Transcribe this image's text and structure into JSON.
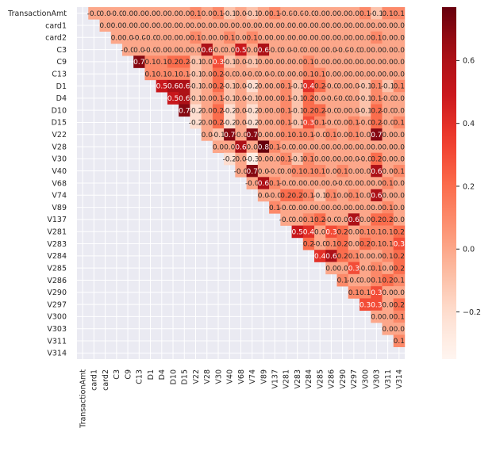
{
  "chart_data": {
    "type": "heatmap",
    "title": "",
    "xlabel": "",
    "ylabel": "",
    "variables": [
      "TransactionAmt",
      "card1",
      "card2",
      "C3",
      "C9",
      "C13",
      "D1",
      "D4",
      "D10",
      "D15",
      "V22",
      "V28",
      "V30",
      "V40",
      "V68",
      "V74",
      "V89",
      "V137",
      "V281",
      "V283",
      "V284",
      "V285",
      "V286",
      "V290",
      "V297",
      "V300",
      "V303",
      "V311",
      "V314"
    ],
    "mask": "lower-triangle-and-diagonal",
    "values": [
      [
        null,
        -0.0,
        0.0,
        -0.0,
        0.0,
        0.0,
        0.0,
        0.0,
        0.0,
        0.0,
        0.1,
        0.0,
        0.1,
        -0.1,
        0.0,
        -0.1,
        0.0,
        0.1,
        -0.0,
        -0.0,
        -0.0,
        0.0,
        0.0,
        0.0,
        0.0,
        0.1,
        -0.1,
        0.1,
        0.1
      ],
      [
        null,
        null,
        0.0,
        0.0,
        0.0,
        0.0,
        0.0,
        0.0,
        0.0,
        0.0,
        0.0,
        0.0,
        0.0,
        0.0,
        0.0,
        0.0,
        0.0,
        0.0,
        0.0,
        0.0,
        0.0,
        0.0,
        0.0,
        0.0,
        0.0,
        0.0,
        0.0,
        0.0,
        0.0
      ],
      [
        null,
        null,
        null,
        0.0,
        0.0,
        -0.0,
        -0.0,
        0.0,
        0.0,
        0.0,
        0.1,
        0.0,
        0.0,
        0.1,
        0.0,
        0.1,
        0.0,
        0.0,
        0.0,
        0.0,
        0.0,
        0.0,
        0.0,
        0.0,
        0.0,
        0.0,
        0.1,
        0.0,
        0.0
      ],
      [
        null,
        null,
        null,
        null,
        -0.0,
        0.0,
        -0.0,
        0.0,
        0.0,
        0.0,
        0.0,
        0.6,
        -0.0,
        0.0,
        0.5,
        0.0,
        0.6,
        -0.0,
        0.0,
        -0.0,
        0.0,
        0.0,
        0.0,
        -0.0,
        -0.0,
        0.0,
        0.0,
        0.0,
        0.0
      ],
      [
        null,
        null,
        null,
        null,
        null,
        0.7,
        0.1,
        0.1,
        0.2,
        0.2,
        -0.1,
        0.0,
        0.3,
        -0.1,
        0.0,
        -0.1,
        0.0,
        0.0,
        0.0,
        0.0,
        0.1,
        0.0,
        0.0,
        0.0,
        0.0,
        0.0,
        0.0,
        0.0,
        0.0
      ],
      [
        null,
        null,
        null,
        null,
        null,
        null,
        0.1,
        0.1,
        0.1,
        0.1,
        -0.1,
        0.0,
        0.2,
        -0.0,
        0.0,
        -0.0,
        0.0,
        -0.0,
        0.0,
        0.0,
        0.1,
        0.1,
        0.0,
        0.0,
        0.0,
        0.0,
        0.0,
        0.0,
        0.0
      ],
      [
        null,
        null,
        null,
        null,
        null,
        null,
        null,
        0.5,
        0.6,
        0.6,
        -0.1,
        0.0,
        0.2,
        -0.1,
        0.0,
        -0.2,
        0.0,
        0.0,
        0.1,
        -0.1,
        0.4,
        0.2,
        -0.0,
        0.0,
        0.0,
        -0.1,
        0.1,
        -0.1,
        0.1
      ],
      [
        null,
        null,
        null,
        null,
        null,
        null,
        null,
        null,
        0.5,
        0.6,
        -0.1,
        0.0,
        0.1,
        -0.1,
        0.0,
        -0.1,
        0.0,
        0.0,
        0.1,
        -0.1,
        0.2,
        0.0,
        -0.0,
        -0.0,
        0.0,
        -0.1,
        0.1,
        -0.0,
        0.0
      ],
      [
        null,
        null,
        null,
        null,
        null,
        null,
        null,
        null,
        null,
        0.7,
        -0.2,
        0.0,
        0.2,
        -0.2,
        0.0,
        -0.2,
        0.0,
        0.0,
        0.1,
        -0.1,
        0.2,
        0.2,
        -0.0,
        0.0,
        0.0,
        -0.1,
        0.2,
        -0.0,
        0.0
      ],
      [
        null,
        null,
        null,
        null,
        null,
        null,
        null,
        null,
        null,
        null,
        -0.2,
        0.0,
        0.2,
        -0.2,
        0.0,
        -0.2,
        0.0,
        0.0,
        0.1,
        -0.1,
        0.3,
        0.1,
        -0.0,
        0.0,
        0.1,
        -0.0,
        0.2,
        -0.0,
        0.1
      ],
      [
        null,
        null,
        null,
        null,
        null,
        null,
        null,
        null,
        null,
        null,
        null,
        0.0,
        -0.1,
        0.7,
        -0.0,
        0.7,
        0.0,
        0.0,
        0.1,
        0.1,
        0.1,
        -0.0,
        0.1,
        0.0,
        0.1,
        0.0,
        0.7,
        0.0,
        0.0
      ],
      [
        null,
        null,
        null,
        null,
        null,
        null,
        null,
        null,
        null,
        null,
        null,
        null,
        0.0,
        0.0,
        0.6,
        0.0,
        0.8,
        0.1,
        -0.0,
        0.0,
        0.0,
        0.0,
        0.0,
        0.0,
        0.0,
        0.0,
        0.0,
        0.0,
        0.0
      ],
      [
        null,
        null,
        null,
        null,
        null,
        null,
        null,
        null,
        null,
        null,
        null,
        null,
        null,
        -0.2,
        0.0,
        -0.3,
        0.0,
        0.0,
        0.1,
        -0.1,
        0.1,
        0.0,
        0.0,
        0.0,
        0.0,
        -0.0,
        0.2,
        0.0,
        0.0
      ],
      [
        null,
        null,
        null,
        null,
        null,
        null,
        null,
        null,
        null,
        null,
        null,
        null,
        null,
        null,
        -0.0,
        0.7,
        0.0,
        -0.0,
        0.0,
        0.1,
        0.1,
        0.1,
        0.0,
        0.1,
        0.0,
        0.0,
        0.6,
        0.0,
        0.1
      ],
      [
        null,
        null,
        null,
        null,
        null,
        null,
        null,
        null,
        null,
        null,
        null,
        null,
        null,
        null,
        null,
        -0.0,
        0.6,
        0.1,
        -0.0,
        0.0,
        0.0,
        0.0,
        0.0,
        -0.0,
        0.0,
        0.0,
        0.0,
        0.1,
        0.0
      ],
      [
        null,
        null,
        null,
        null,
        null,
        null,
        null,
        null,
        null,
        null,
        null,
        null,
        null,
        null,
        null,
        null,
        0.0,
        -0.0,
        0.2,
        0.2,
        0.1,
        -0.1,
        0.1,
        0.0,
        0.1,
        0.0,
        0.6,
        0.0,
        0.0
      ],
      [
        null,
        null,
        null,
        null,
        null,
        null,
        null,
        null,
        null,
        null,
        null,
        null,
        null,
        null,
        null,
        null,
        null,
        0.1,
        -0.0,
        0.0,
        0.0,
        0.0,
        0.0,
        0.0,
        0.0,
        0.0,
        0.0,
        0.1,
        0.0
      ],
      [
        null,
        null,
        null,
        null,
        null,
        null,
        null,
        null,
        null,
        null,
        null,
        null,
        null,
        null,
        null,
        null,
        null,
        null,
        -0.0,
        0.0,
        0.1,
        0.2,
        -0.0,
        0.0,
        0.6,
        0.0,
        0.2,
        0.2,
        0.0
      ],
      [
        null,
        null,
        null,
        null,
        null,
        null,
        null,
        null,
        null,
        null,
        null,
        null,
        null,
        null,
        null,
        null,
        null,
        null,
        null,
        0.5,
        0.4,
        0.0,
        0.3,
        0.2,
        0.0,
        0.1,
        0.1,
        0.1,
        0.2
      ],
      [
        null,
        null,
        null,
        null,
        null,
        null,
        null,
        null,
        null,
        null,
        null,
        null,
        null,
        null,
        null,
        null,
        null,
        null,
        null,
        null,
        0.2,
        -0.0,
        0.1,
        0.2,
        0.0,
        0.2,
        0.1,
        0.1,
        0.3
      ],
      [
        null,
        null,
        null,
        null,
        null,
        null,
        null,
        null,
        null,
        null,
        null,
        null,
        null,
        null,
        null,
        null,
        null,
        null,
        null,
        null,
        null,
        0.4,
        0.6,
        0.2,
        0.1,
        0.0,
        0.0,
        0.1,
        0.2
      ],
      [
        null,
        null,
        null,
        null,
        null,
        null,
        null,
        null,
        null,
        null,
        null,
        null,
        null,
        null,
        null,
        null,
        null,
        null,
        null,
        null,
        null,
        null,
        0.0,
        0.0,
        0.3,
        -0.0,
        0.1,
        0.0,
        0.2
      ],
      [
        null,
        null,
        null,
        null,
        null,
        null,
        null,
        null,
        null,
        null,
        null,
        null,
        null,
        null,
        null,
        null,
        null,
        null,
        null,
        null,
        null,
        null,
        null,
        0.1,
        -0.0,
        0.0,
        0.1,
        0.2,
        0.1
      ],
      [
        null,
        null,
        null,
        null,
        null,
        null,
        null,
        null,
        null,
        null,
        null,
        null,
        null,
        null,
        null,
        null,
        null,
        null,
        null,
        null,
        null,
        null,
        null,
        null,
        0.1,
        0.1,
        0.3,
        0.0,
        0.0
      ],
      [
        null,
        null,
        null,
        null,
        null,
        null,
        null,
        null,
        null,
        null,
        null,
        null,
        null,
        null,
        null,
        null,
        null,
        null,
        null,
        null,
        null,
        null,
        null,
        null,
        null,
        0.3,
        0.3,
        0.0,
        0.2
      ],
      [
        null,
        null,
        null,
        null,
        null,
        null,
        null,
        null,
        null,
        null,
        null,
        null,
        null,
        null,
        null,
        null,
        null,
        null,
        null,
        null,
        null,
        null,
        null,
        null,
        null,
        null,
        0.0,
        0.0,
        0.1
      ],
      [
        null,
        null,
        null,
        null,
        null,
        null,
        null,
        null,
        null,
        null,
        null,
        null,
        null,
        null,
        null,
        null,
        null,
        null,
        null,
        null,
        null,
        null,
        null,
        null,
        null,
        null,
        null,
        0.0,
        0.0
      ],
      [
        null,
        null,
        null,
        null,
        null,
        null,
        null,
        null,
        null,
        null,
        null,
        null,
        null,
        null,
        null,
        null,
        null,
        null,
        null,
        null,
        null,
        null,
        null,
        null,
        null,
        null,
        null,
        null,
        0.1
      ],
      [
        null,
        null,
        null,
        null,
        null,
        null,
        null,
        null,
        null,
        null,
        null,
        null,
        null,
        null,
        null,
        null,
        null,
        null,
        null,
        null,
        null,
        null,
        null,
        null,
        null,
        null,
        null,
        null,
        null
      ]
    ],
    "colormap": "Reds",
    "colorbar": {
      "vmin": -0.35,
      "vmax": 0.77,
      "ticks": [
        -0.2,
        0.0,
        0.2,
        0.4,
        0.6
      ],
      "tick_labels": [
        "−0.2",
        "0.0",
        "0.2",
        "0.4",
        "0.6"
      ]
    },
    "background_color": "#eaeaf2",
    "grid_color": "#ffffff"
  }
}
